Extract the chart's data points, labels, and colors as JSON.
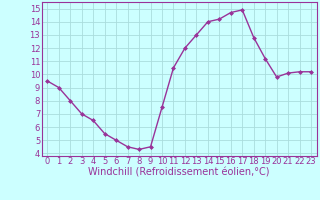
{
  "x": [
    0,
    1,
    2,
    3,
    4,
    5,
    6,
    7,
    8,
    9,
    10,
    11,
    12,
    13,
    14,
    15,
    16,
    17,
    18,
    19,
    20,
    21,
    22,
    23
  ],
  "y": [
    9.5,
    9.0,
    8.0,
    7.0,
    6.5,
    5.5,
    5.0,
    4.5,
    4.3,
    4.5,
    7.5,
    10.5,
    12.0,
    13.0,
    14.0,
    14.2,
    14.7,
    14.9,
    12.8,
    11.2,
    9.8,
    10.1,
    10.2,
    10.2
  ],
  "line_color": "#993399",
  "marker": "D",
  "marker_size": 2,
  "bg_color": "#ccffff",
  "grid_color": "#aadddd",
  "xlabel": "Windchill (Refroidissement éolien,°C)",
  "xlabel_color": "#993399",
  "xlabel_fontsize": 7,
  "tick_color": "#993399",
  "tick_fontsize": 6,
  "xlim": [
    -0.5,
    23.5
  ],
  "ylim": [
    3.8,
    15.5
  ],
  "yticks": [
    4,
    5,
    6,
    7,
    8,
    9,
    10,
    11,
    12,
    13,
    14,
    15
  ],
  "xticks": [
    0,
    1,
    2,
    3,
    4,
    5,
    6,
    7,
    8,
    9,
    10,
    11,
    12,
    13,
    14,
    15,
    16,
    17,
    18,
    19,
    20,
    21,
    22,
    23
  ],
  "spine_color": "#993399",
  "linewidth": 1.0
}
